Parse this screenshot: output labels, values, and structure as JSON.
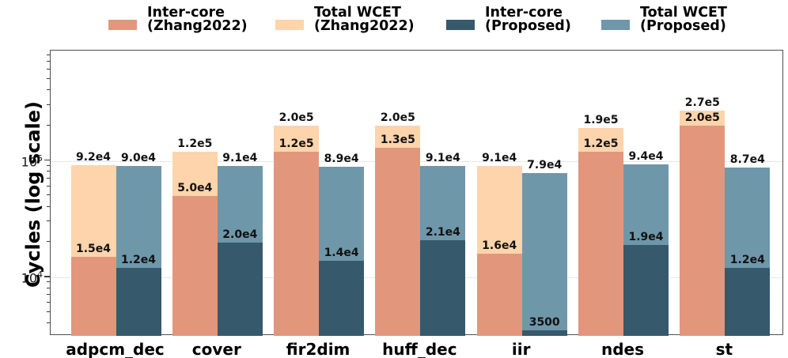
{
  "chart_data": {
    "type": "bar",
    "title": "",
    "ylabel": "Cycles (log scale)",
    "xlabel": "",
    "yscale": "log",
    "ylim": [
      3150,
      883000
    ],
    "grid": "horizontal dotted at major ticks only",
    "legend_position": "top outside, single row",
    "categories": [
      "adpcm_dec",
      "cover",
      "fir2dim",
      "huff_dec",
      "iir",
      "ndes",
      "st"
    ],
    "yticks": [
      {
        "v": 10000,
        "base": "10",
        "exp": "4"
      },
      {
        "v": 100000,
        "base": "10",
        "exp": "5"
      }
    ],
    "y_minor_ticks": [
      4000,
      5000,
      6000,
      7000,
      8000,
      9000,
      20000,
      30000,
      40000,
      50000,
      60000,
      70000,
      80000,
      90000,
      200000,
      300000,
      400000,
      500000,
      600000,
      700000,
      800000
    ],
    "series": [
      {
        "key": "total-wcet-zhang2022",
        "name": "Total WCET (Zhang2022)",
        "color": "#FDD4AB",
        "column": "left",
        "layer": "back",
        "values": [
          92000,
          120000,
          200000,
          200000,
          91000,
          190000,
          270000
        ],
        "labels": [
          "9.2e4",
          "1.2e5",
          "2.0e5",
          "2.0e5",
          "9.1e4",
          "1.9e5",
          "2.7e5"
        ]
      },
      {
        "key": "inter-core-zhang2022",
        "name": "Inter-core (Zhang2022)",
        "color": "#E2977C",
        "column": "left",
        "layer": "front",
        "values": [
          15000,
          50000,
          120000,
          130000,
          16000,
          120000,
          200000
        ],
        "labels": [
          "1.5e4",
          "5.0e4",
          "1.2e5",
          "1.3e5",
          "1.6e4",
          "1.2e5",
          "2.0e5"
        ]
      },
      {
        "key": "total-wcet-proposed",
        "name": "Total WCET (Proposed)",
        "color": "#6F97AA",
        "column": "right",
        "layer": "back",
        "values": [
          90000,
          91000,
          89000,
          91000,
          79000,
          94000,
          87000
        ],
        "labels": [
          "9.0e4",
          "9.1e4",
          "8.9e4",
          "9.1e4",
          "7.9e4",
          "9.4e4",
          "8.7e4"
        ]
      },
      {
        "key": "inter-core-proposed",
        "name": "Inter-core (Proposed)",
        "color": "#36596B",
        "column": "right",
        "layer": "front",
        "values": [
          12000,
          20000,
          14000,
          21000,
          3500,
          19000,
          12000
        ],
        "labels": [
          "1.2e4",
          "2.0e4",
          "1.4e4",
          "2.1e4",
          "3500",
          "1.9e4",
          "1.2e4"
        ]
      }
    ],
    "legend": [
      {
        "line1": "Inter-core",
        "line2": "(Zhang2022)",
        "color": "#E2977C"
      },
      {
        "line1": "Total WCET",
        "line2": "(Zhang2022)",
        "color": "#FDD4AB"
      },
      {
        "line1": "Inter-core",
        "line2": "(Proposed)",
        "color": "#36596B"
      },
      {
        "line1": "Total WCET",
        "line2": "(Proposed)",
        "color": "#6F97AA"
      }
    ]
  }
}
